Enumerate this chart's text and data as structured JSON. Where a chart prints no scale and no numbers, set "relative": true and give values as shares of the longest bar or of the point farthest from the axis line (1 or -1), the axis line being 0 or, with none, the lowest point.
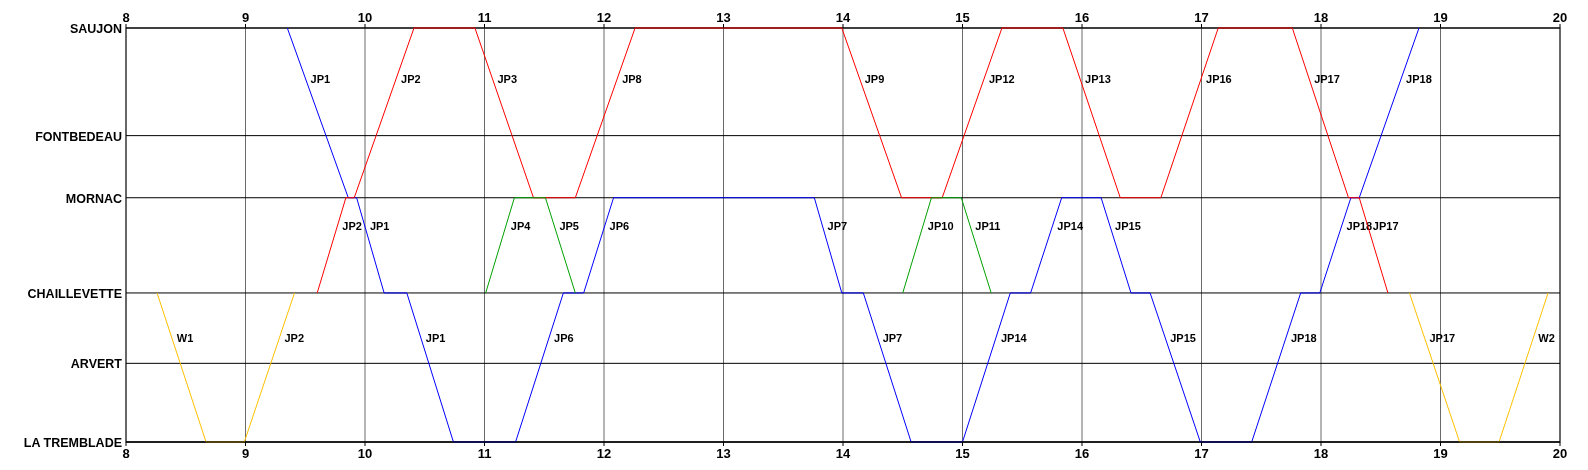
{
  "chart_data": {
    "type": "line",
    "relative": true,
    "xlim": [
      8,
      20
    ],
    "xticks": [
      8,
      9,
      10,
      11,
      12,
      13,
      14,
      15,
      16,
      17,
      18,
      19,
      20
    ],
    "x2lim": [
      8,
      20
    ],
    "x2ticks": [
      8,
      9,
      10,
      11,
      12,
      13,
      14,
      15,
      16,
      17,
      18,
      19,
      20
    ],
    "ref_lines": [
      {
        "axis": "y",
        "value": 0,
        "label": "LA TREMBLADE"
      },
      {
        "axis": "y",
        "value": 0.19,
        "label": "ARVERT"
      },
      {
        "axis": "y",
        "value": 0.36,
        "label": "CHAILLEVETTE"
      },
      {
        "axis": "y",
        "value": 0.59,
        "label": "MORNAC"
      },
      {
        "axis": "y",
        "value": 0.74,
        "label": "FONTBEDEAU"
      },
      {
        "axis": "y",
        "value": 1,
        "label": "SAUJON"
      }
    ],
    "grid": "x",
    "marker": "none",
    "line_style": "solid",
    "series": [
      {
        "name": "JP1",
        "color": "#0000ff",
        "x": [
          9.35,
          9.86,
          9.93,
          10.16,
          10.35,
          10.74,
          11.26
        ],
        "values": [
          1,
          0.59,
          0.59,
          0.36,
          0.36,
          0,
          0
        ]
      },
      {
        "name": "JP6",
        "color": "#0000ff",
        "x": [
          11.26,
          11.66,
          11.83,
          12.08,
          13.76
        ],
        "values": [
          0,
          0.36,
          0.36,
          0.59,
          0.59
        ]
      },
      {
        "name": "JP7",
        "color": "#0000ff",
        "x": [
          13.76,
          13.99,
          14.17,
          14.57,
          15.0
        ],
        "values": [
          0.59,
          0.36,
          0.36,
          0,
          0
        ]
      },
      {
        "name": "JP14",
        "color": "#0000ff",
        "x": [
          15.0,
          15.4,
          15.57,
          15.83,
          16.16
        ],
        "values": [
          0,
          0.36,
          0.36,
          0.59,
          0.59
        ]
      },
      {
        "name": "JP15",
        "color": "#0000ff",
        "x": [
          16.16,
          16.41,
          16.57,
          16.99,
          17.42
        ],
        "values": [
          0.59,
          0.36,
          0.36,
          0,
          0
        ]
      },
      {
        "name": "JP18",
        "color": "#0000ff",
        "x": [
          17.42,
          17.83,
          17.99,
          18.25,
          18.32,
          18.82
        ],
        "values": [
          0,
          0.36,
          0.36,
          0.59,
          0.59,
          1
        ]
      },
      {
        "name": "JP2",
        "color": "#ff0000",
        "x": [
          9.6,
          9.84,
          9.91,
          10.41,
          10.92
        ],
        "values": [
          0.36,
          0.59,
          0.59,
          1,
          1
        ]
      },
      {
        "name": "JP3",
        "color": "#ff0000",
        "x": [
          10.92,
          11.41,
          11.76
        ],
        "values": [
          1,
          0.59,
          0.59
        ]
      },
      {
        "name": "JP8",
        "color": "#ff0000",
        "x": [
          11.76,
          12.26,
          13.99
        ],
        "values": [
          0.59,
          1,
          1
        ]
      },
      {
        "name": "JP9",
        "color": "#ff0000",
        "x": [
          13.99,
          14.49,
          14.83
        ],
        "values": [
          1,
          0.59,
          0.59
        ]
      },
      {
        "name": "JP12",
        "color": "#ff0000",
        "x": [
          14.83,
          15.33,
          15.84
        ],
        "values": [
          0.59,
          1,
          1
        ]
      },
      {
        "name": "JP13",
        "color": "#ff0000",
        "x": [
          15.84,
          16.32,
          16.66
        ],
        "values": [
          1,
          0.59,
          0.59
        ]
      },
      {
        "name": "JP16",
        "color": "#ff0000",
        "x": [
          16.66,
          17.14,
          17.76
        ],
        "values": [
          0.59,
          1,
          1
        ]
      },
      {
        "name": "JP17",
        "color": "#ff0000",
        "x": [
          17.76,
          18.23,
          18.32,
          18.56
        ],
        "values": [
          1,
          0.59,
          0.59,
          0.36
        ]
      },
      {
        "name": "JP4",
        "color": "#00a000",
        "x": [
          11.01,
          11.25,
          11.51
        ],
        "values": [
          0.36,
          0.59,
          0.59
        ]
      },
      {
        "name": "JP5",
        "color": "#00a000",
        "x": [
          11.51,
          11.76
        ],
        "values": [
          0.59,
          0.36
        ]
      },
      {
        "name": "JP10",
        "color": "#00a000",
        "x": [
          14.5,
          14.74,
          14.99
        ],
        "values": [
          0.36,
          0.59,
          0.59
        ]
      },
      {
        "name": "JP11",
        "color": "#00a000",
        "x": [
          14.99,
          15.24
        ],
        "values": [
          0.59,
          0.36
        ]
      },
      {
        "name": "W1",
        "color": "#ffc000",
        "x": [
          8.26,
          8.67,
          8.99
        ],
        "values": [
          0.36,
          0,
          0
        ]
      },
      {
        "name": "JP2",
        "color": "#ffc000",
        "x": [
          8.99,
          9.41
        ],
        "values": [
          0,
          0.36
        ]
      },
      {
        "name": "JP17",
        "color": "#ffc000",
        "x": [
          18.74,
          19.16,
          19.49
        ],
        "values": [
          0.36,
          0,
          0
        ]
      },
      {
        "name": "W2",
        "color": "#ffc000",
        "x": [
          19.49,
          19.9
        ],
        "values": [
          0,
          0.36
        ]
      }
    ]
  }
}
